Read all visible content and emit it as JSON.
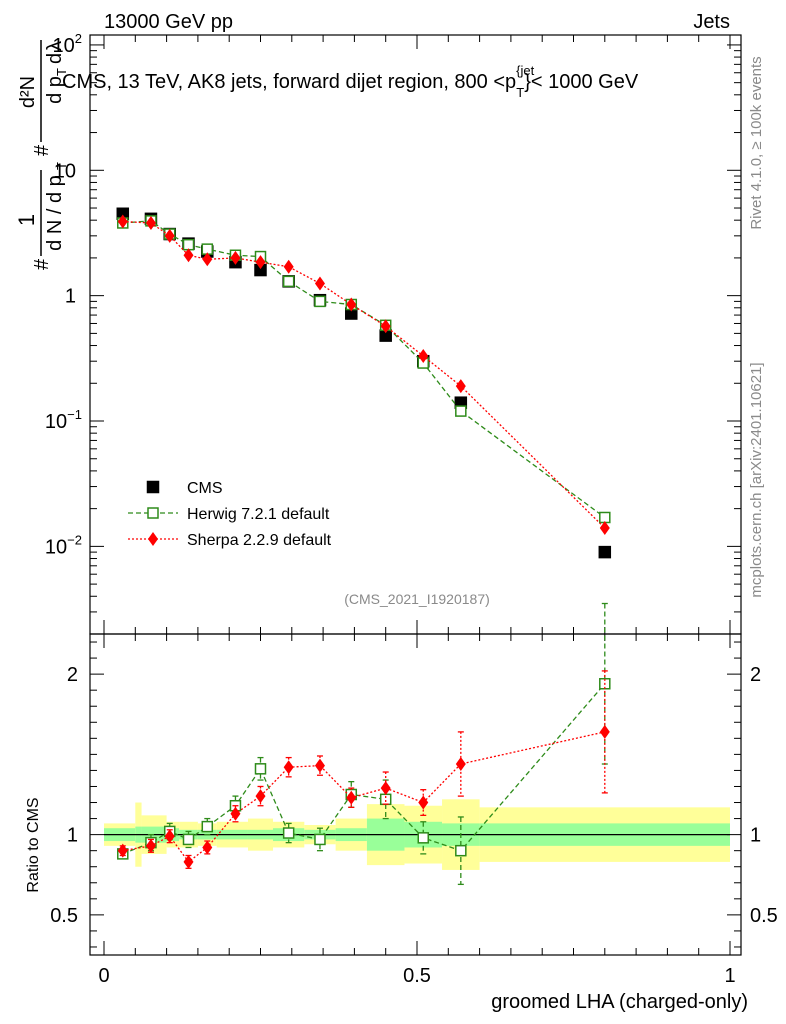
{
  "header": {
    "left": "13000 GeV pp",
    "right": "Jets"
  },
  "title_text": "CMS, 13 TeV, AK8 jets, forward dijet region, 800 <p",
  "title_sup": "{jet",
  "title_sub": "T",
  "title_tail": "}< 1000 GeV",
  "side_labels": {
    "rivet": "Rivet 4.1.0, ≥ 100k events",
    "mcplots": "mcplots.cern.ch [arXiv:2401.10621]"
  },
  "analysis_tag": "(CMS_2021_I1920187)",
  "ylabel_main": "1/N dN/dp_T d²N/dp_T dλ",
  "ylabel_ratio": "Ratio to CMS",
  "xlabel": "groomed LHA (charged-only)",
  "colors": {
    "data": "#000000",
    "herwig": "#2e8b1a",
    "sherpa": "#ff0000",
    "band_inner": "#99ff99",
    "band_outer": "#ffff99"
  },
  "chart_data": [
    {
      "type": "scatter",
      "title": "CMS, 13 TeV, AK8 jets, forward dijet region, 800 < p_T^{jet} < 1000 GeV",
      "xlabel": "groomed LHA (charged-only)",
      "ylabel": "1/N dN/dp_T d²N/dp_T dλ",
      "yscale": "log",
      "xlim": [
        0,
        1
      ],
      "ylim": [
        0.002,
        120
      ],
      "yticks": [
        {
          "v": 0.01,
          "base": "10",
          "exp": "−2"
        },
        {
          "v": 0.1,
          "base": "10",
          "exp": "−1"
        },
        {
          "v": 1,
          "base": "1",
          "exp": ""
        },
        {
          "v": 10,
          "base": "10",
          "exp": ""
        },
        {
          "v": 100,
          "base": "10",
          "exp": "2"
        }
      ],
      "legend": [
        {
          "name": "CMS",
          "key": "data"
        },
        {
          "name": "Herwig 7.2.1 default",
          "key": "herwig"
        },
        {
          "name": "Sherpa 2.2.9 default",
          "key": "sherpa"
        }
      ],
      "series": [
        {
          "name": "CMS",
          "key": "data",
          "x": [
            0.03,
            0.075,
            0.105,
            0.135,
            0.165,
            0.21,
            0.25,
            0.295,
            0.345,
            0.395,
            0.45,
            0.51,
            0.57,
            0.8
          ],
          "y": [
            4.5,
            4.1,
            3.1,
            2.6,
            2.25,
            1.85,
            1.6,
            1.3,
            0.92,
            0.72,
            0.48,
            0.3,
            0.14,
            0.009
          ]
        },
        {
          "name": "Herwig 7.2.1 default",
          "key": "herwig",
          "x": [
            0.03,
            0.075,
            0.105,
            0.135,
            0.165,
            0.21,
            0.25,
            0.295,
            0.345,
            0.395,
            0.45,
            0.51,
            0.57,
            0.8
          ],
          "y": [
            3.8,
            3.95,
            3.1,
            2.55,
            2.35,
            2.1,
            2.05,
            1.3,
            0.9,
            0.85,
            0.58,
            0.29,
            0.12,
            0.017
          ]
        },
        {
          "name": "Sherpa 2.2.9 default",
          "key": "sherpa",
          "x": [
            0.03,
            0.075,
            0.105,
            0.135,
            0.165,
            0.21,
            0.25,
            0.295,
            0.345,
            0.395,
            0.45,
            0.51,
            0.57,
            0.8
          ],
          "y": [
            3.9,
            3.8,
            3.0,
            2.1,
            1.95,
            2.0,
            1.85,
            1.7,
            1.25,
            0.85,
            0.57,
            0.33,
            0.19,
            0.014
          ]
        }
      ]
    },
    {
      "type": "scatter",
      "title": "",
      "xlabel": "groomed LHA (charged-only)",
      "ylabel": "Ratio to CMS",
      "xlim": [
        0,
        1
      ],
      "ylim": [
        0.25,
        2.25
      ],
      "yticks": [
        {
          "v": 0.5,
          "label": "0.5"
        },
        {
          "v": 1,
          "label": "1"
        },
        {
          "v": 2,
          "label": "2"
        }
      ],
      "xticks": [
        {
          "v": 0,
          "label": "0"
        },
        {
          "v": 0.5,
          "label": "0.5"
        },
        {
          "v": 1,
          "label": "1"
        }
      ],
      "reference_line": 1,
      "uncertainty_bands": {
        "edges": [
          0,
          0.05,
          0.06,
          0.1,
          0.12,
          0.15,
          0.18,
          0.23,
          0.27,
          0.32,
          0.37,
          0.42,
          0.48,
          0.54,
          0.6,
          1.0
        ],
        "inner": [
          0.04,
          0.05,
          0.05,
          0.04,
          0.03,
          0.03,
          0.03,
          0.03,
          0.04,
          0.03,
          0.04,
          0.1,
          0.08,
          0.07,
          0.07
        ],
        "outer": [
          0.07,
          0.2,
          0.12,
          0.08,
          0.08,
          0.07,
          0.08,
          0.1,
          0.08,
          0.06,
          0.1,
          0.19,
          0.18,
          0.22,
          0.17
        ]
      },
      "series": [
        {
          "name": "Herwig 7.2.1 default",
          "key": "herwig",
          "x": [
            0.03,
            0.075,
            0.105,
            0.135,
            0.165,
            0.21,
            0.25,
            0.295,
            0.345,
            0.395,
            0.45,
            0.51,
            0.57,
            0.8
          ],
          "y": [
            0.88,
            0.95,
            1.02,
            0.97,
            1.05,
            1.18,
            1.41,
            1.01,
            0.97,
            1.25,
            1.22,
            0.98,
            0.9,
            1.94
          ],
          "err": [
            0.03,
            0.05,
            0.05,
            0.05,
            0.05,
            0.06,
            0.07,
            0.06,
            0.07,
            0.08,
            0.12,
            0.1,
            0.21,
            0.5
          ]
        },
        {
          "name": "Sherpa 2.2.9 default",
          "key": "sherpa",
          "x": [
            0.03,
            0.075,
            0.105,
            0.135,
            0.165,
            0.21,
            0.25,
            0.295,
            0.345,
            0.395,
            0.45,
            0.51,
            0.57,
            0.8
          ],
          "y": [
            0.9,
            0.93,
            0.99,
            0.83,
            0.92,
            1.13,
            1.24,
            1.42,
            1.43,
            1.23,
            1.29,
            1.2,
            1.44,
            1.64
          ],
          "err": [
            0.03,
            0.04,
            0.04,
            0.04,
            0.04,
            0.05,
            0.06,
            0.06,
            0.06,
            0.06,
            0.1,
            0.08,
            0.2,
            0.38
          ]
        }
      ]
    }
  ]
}
